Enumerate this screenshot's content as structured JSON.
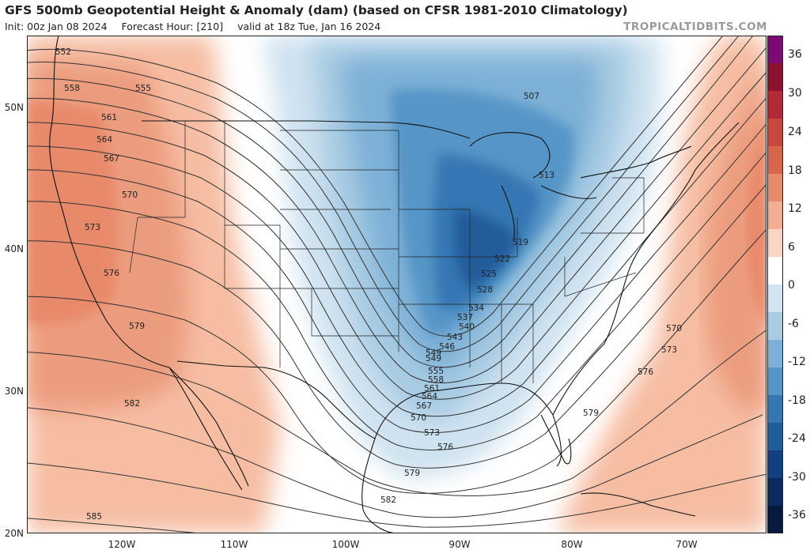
{
  "header": {
    "title": "GFS 500mb Geopotential Height & Anomaly (dam) (based on CFSR 1981-2010 Climatology)",
    "init": "Init: 00z Jan 08 2024",
    "forecast_hour": "Forecast Hour: [210]",
    "valid": "valid at 18z Tue, Jan 16 2024",
    "brand": "TROPICALTIDBITS.COM"
  },
  "axes": {
    "lat_labels": [
      "50N",
      "40N",
      "30N",
      "20N"
    ],
    "lon_labels": [
      "120W",
      "110W",
      "100W",
      "90W",
      "80W",
      "70W"
    ]
  },
  "colorbar": {
    "labels": [
      "36",
      "30",
      "24",
      "18",
      "12",
      "6",
      "0",
      "-6",
      "-12",
      "-18",
      "-24",
      "-30",
      "-36"
    ],
    "colors": [
      "#7b0a74",
      "#8c1330",
      "#b22a36",
      "#c8483f",
      "#d8664c",
      "#e88a6c",
      "#f3ad92",
      "#fbd5c3",
      "#ffffff",
      "#d0e4f1",
      "#a8cce4",
      "#7db0d6",
      "#5695c7",
      "#3477b4",
      "#1f5c9c",
      "#143f80",
      "#0b2a5e",
      "#061a40"
    ]
  },
  "contours": {
    "labels": [
      "507",
      "513",
      "519",
      "522",
      "525",
      "528",
      "534",
      "537",
      "540",
      "543",
      "546",
      "549",
      "549",
      "552",
      "555",
      "555",
      "558",
      "558",
      "561",
      "561",
      "564",
      "564",
      "567",
      "567",
      "570",
      "570",
      "570",
      "573",
      "573",
      "573",
      "576",
      "576",
      "576",
      "579",
      "579",
      "579",
      "582",
      "582",
      "585"
    ]
  }
}
